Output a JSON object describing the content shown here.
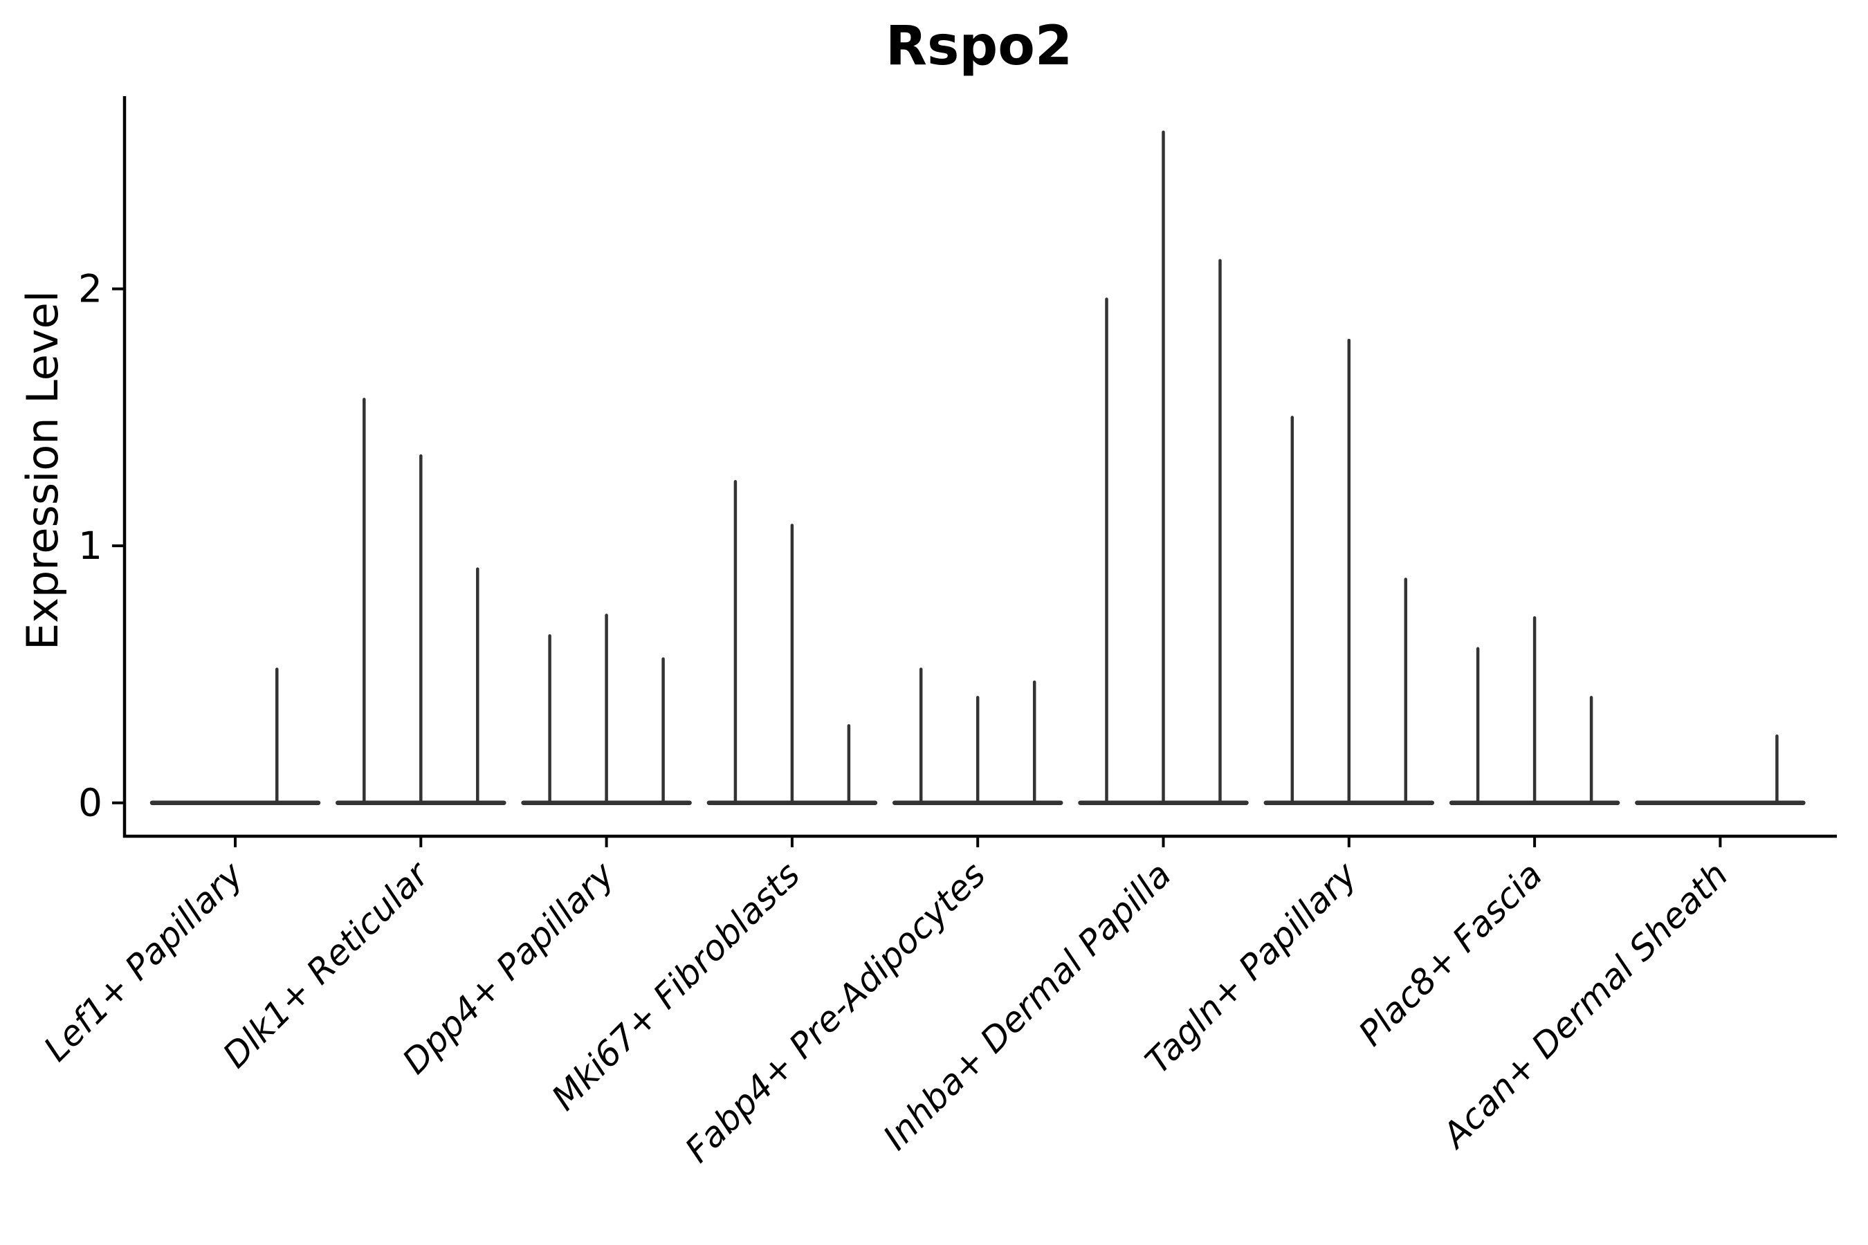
{
  "figure": {
    "background": "#ffffff"
  },
  "chart_data": {
    "type": "violin",
    "title": "Rspo2",
    "ylabel": "Expression Level",
    "xlabel": "",
    "yticks": [
      "0",
      "1",
      "2"
    ],
    "ytick_values": [
      0,
      1,
      2
    ],
    "ylim": [
      -0.13,
      2.75
    ],
    "grid": false,
    "legend": "none",
    "xtick_rotation_deg": 45,
    "violins_per_category": 3,
    "categories": [
      "Lef1+ Papillary",
      "Dlk1+ Reticular",
      "Dpp4+ Papillary",
      "Mki67+ Fibroblasts",
      "Fabp4+ Pre-Adipocytes",
      "Inhba+ Dermal Papilla",
      "Tagln+ Papillary",
      "Plac8+ Fascia",
      "Acan+ Dermal Sheath"
    ],
    "series": [
      {
        "category": "Lef1+ Papillary",
        "max_values": [
          0,
          0,
          0.52
        ],
        "spike_fracs": [
          0.1667,
          0.5,
          0.745
        ]
      },
      {
        "category": "Dlk1+ Reticular",
        "max_values": [
          1.57,
          1.35,
          0.91
        ],
        "spike_fracs": [
          0.1667,
          0.5,
          0.8333
        ]
      },
      {
        "category": "Dpp4+ Papillary",
        "max_values": [
          0.65,
          0.73,
          0.56
        ],
        "spike_fracs": [
          0.1667,
          0.5,
          0.8333
        ]
      },
      {
        "category": "Mki67+ Fibroblasts",
        "max_values": [
          1.25,
          1.08,
          0.3
        ],
        "spike_fracs": [
          0.1667,
          0.5,
          0.8333
        ]
      },
      {
        "category": "Fabp4+ Pre-Adipocytes",
        "max_values": [
          0.52,
          0.41,
          0.47
        ],
        "spike_fracs": [
          0.1667,
          0.5,
          0.8333
        ]
      },
      {
        "category": "Inhba+ Dermal Papilla",
        "max_values": [
          1.96,
          2.61,
          2.11
        ],
        "spike_fracs": [
          0.1667,
          0.5,
          0.8333
        ]
      },
      {
        "category": "Tagln+ Papillary",
        "max_values": [
          1.5,
          1.8,
          0.87
        ],
        "spike_fracs": [
          0.1667,
          0.5,
          0.8333
        ]
      },
      {
        "category": "Plac8+ Fascia",
        "max_values": [
          0.6,
          0.72,
          0.41
        ],
        "spike_fracs": [
          0.1667,
          0.5,
          0.8333
        ]
      },
      {
        "category": "Acan+ Dermal Sheath",
        "max_values": [
          0,
          0,
          0.26
        ],
        "spike_fracs": [
          0.1667,
          0.5,
          0.8333
        ]
      }
    ],
    "colors": {
      "violin_stroke": "#333333",
      "axis": "#000000",
      "text": "#000000"
    }
  }
}
